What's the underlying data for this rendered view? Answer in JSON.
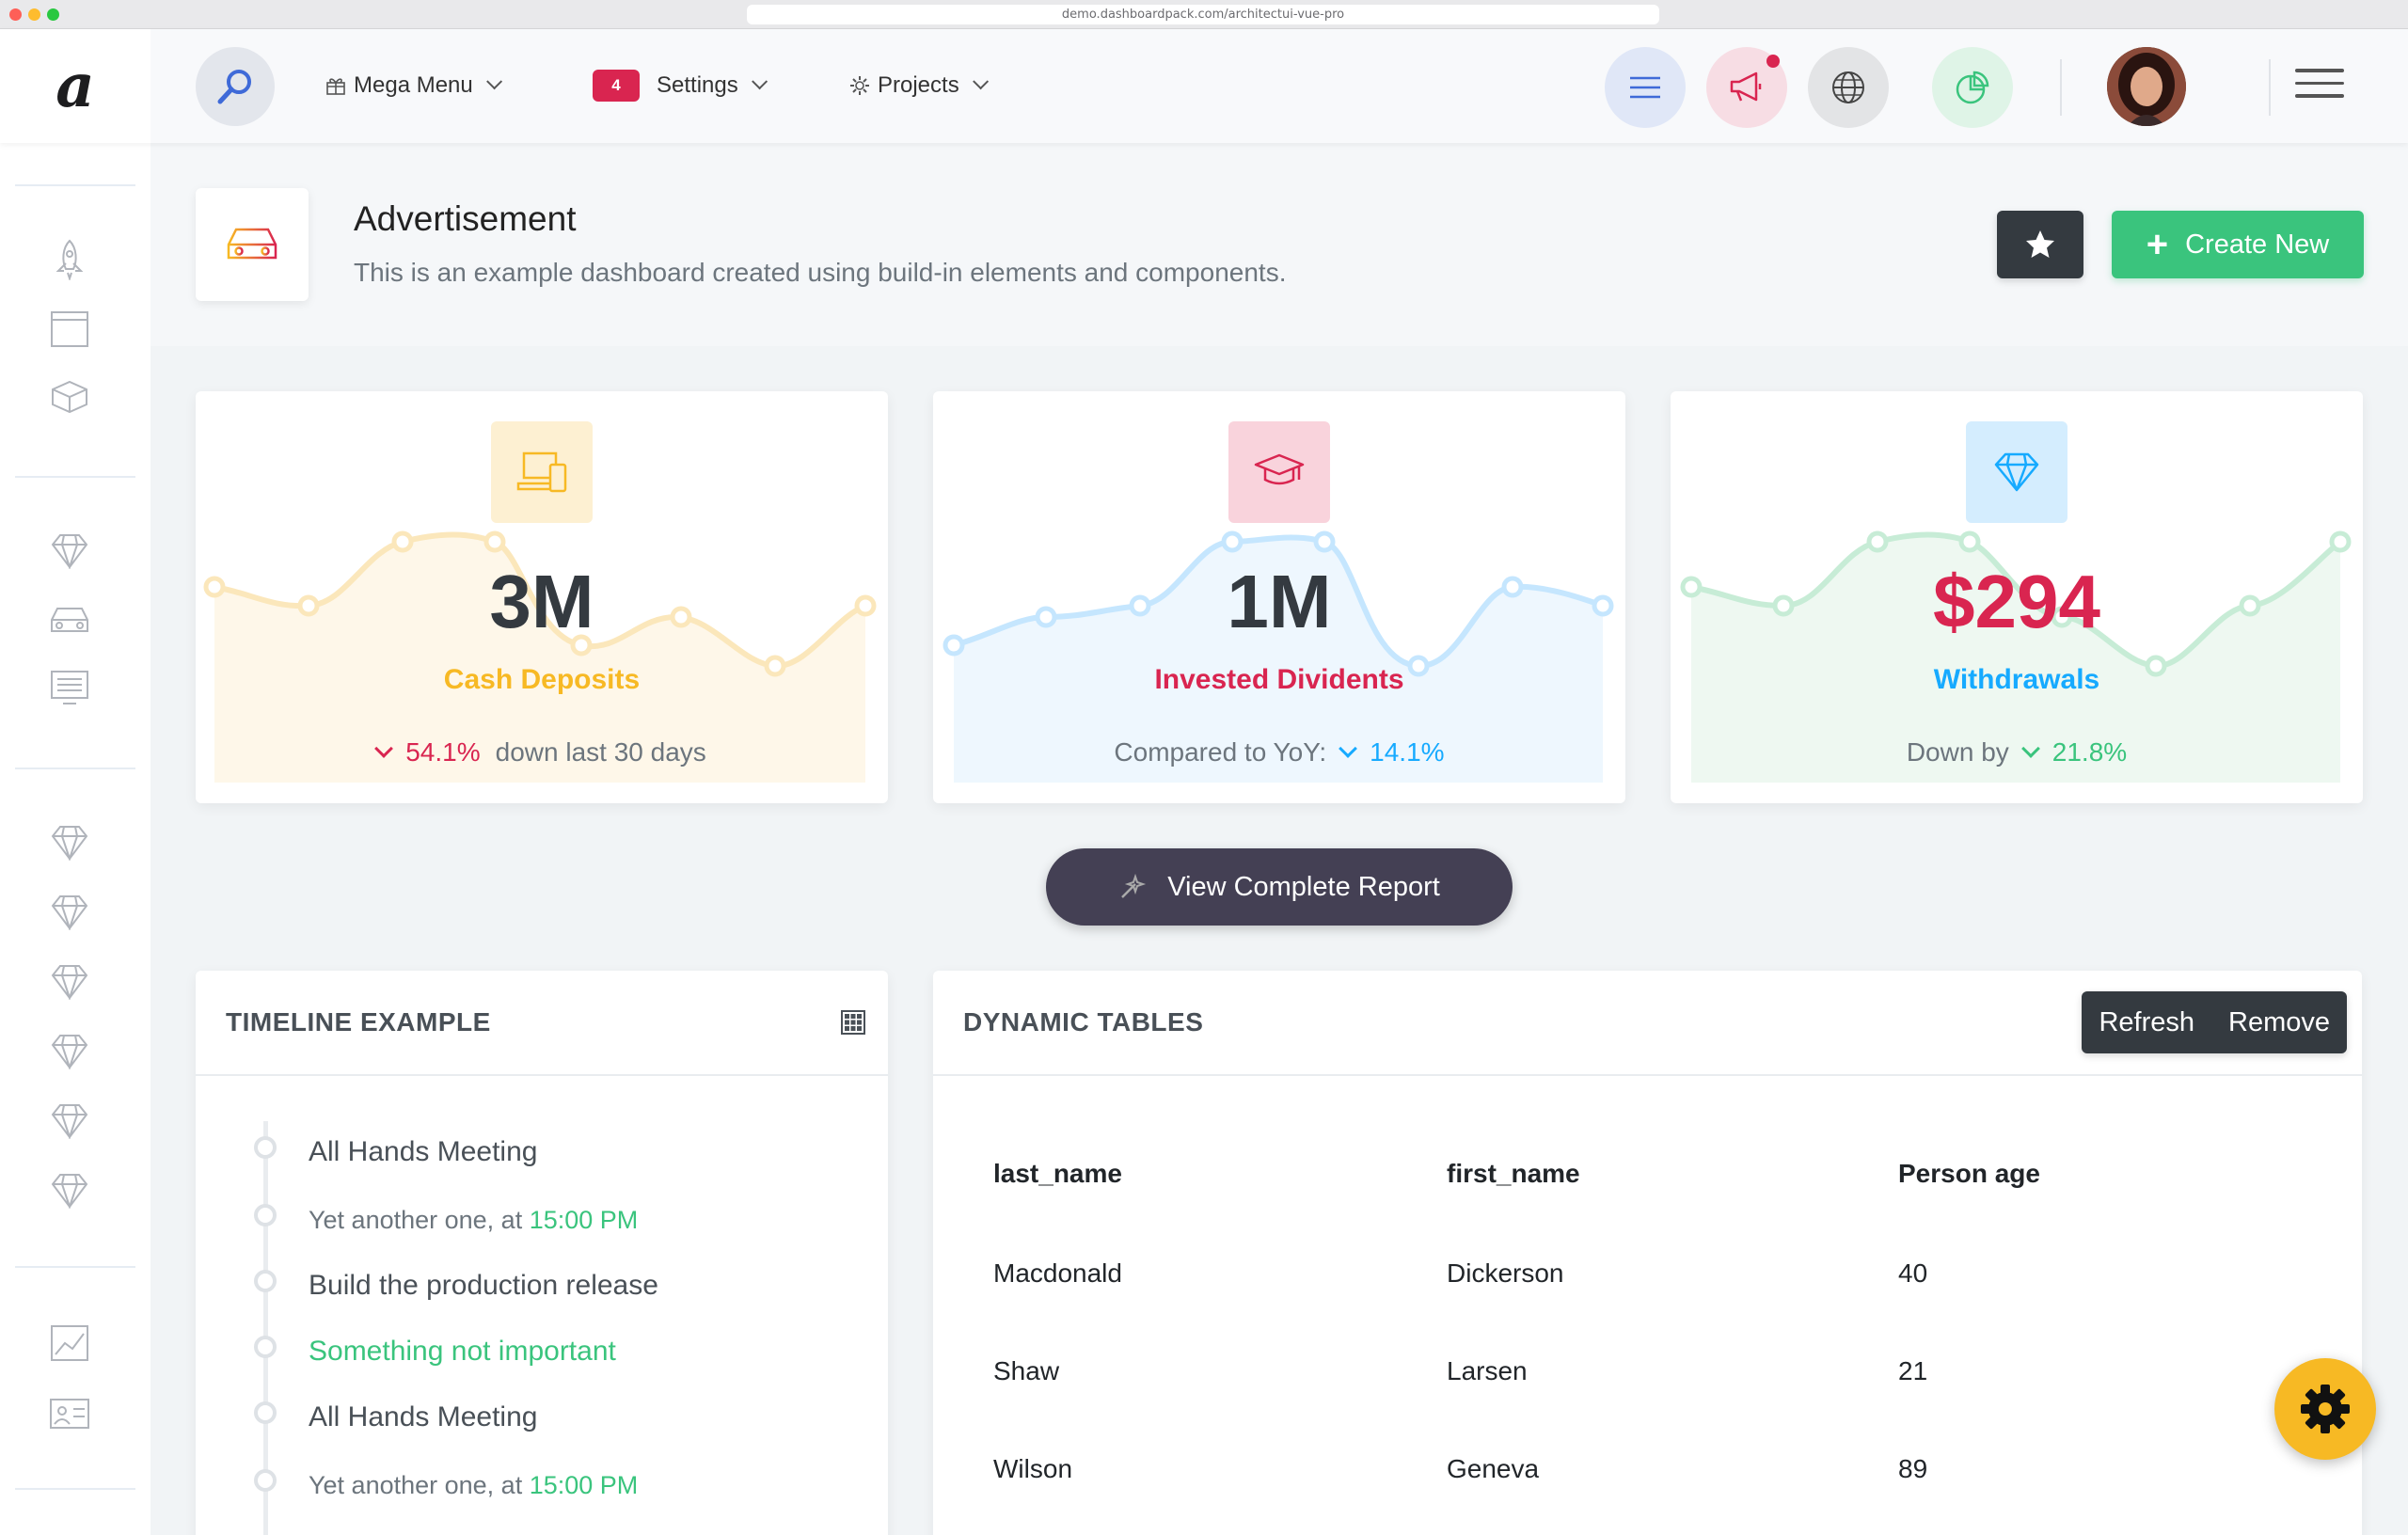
{
  "browser": {
    "url": "demo.dashboardpack.com/architectui-vue-pro"
  },
  "header": {
    "logo": "a",
    "nav": [
      {
        "label": "Mega Menu",
        "icon": "gift-icon"
      },
      {
        "label": "Settings",
        "badge": "4"
      },
      {
        "label": "Projects",
        "icon": "cog-icon"
      }
    ]
  },
  "page_title": {
    "heading": "Advertisement",
    "subheading": "This is an example dashboard created using build-in elements and components.",
    "create_label": "Create New"
  },
  "stats": [
    {
      "value": "3M",
      "label": "Cash Deposits",
      "change": "54.1%",
      "suffix": "down last 30 days",
      "color": "#f7b924"
    },
    {
      "value": "1M",
      "label": "Invested Dividents",
      "prefix": "Compared to YoY:",
      "change": "14.1%",
      "color": "#d92550"
    },
    {
      "value": "$294",
      "label": "Withdrawals",
      "prefix": "Down by",
      "change": "21.8%",
      "color": "#16aaff"
    }
  ],
  "view_report_label": "View Complete Report",
  "timeline": {
    "title": "TIMELINE EXAMPLE",
    "items": [
      {
        "text": "All Hands Meeting"
      },
      {
        "text": "Yet another one, at ",
        "time": "15:00 PM"
      },
      {
        "text": "Build the production release"
      },
      {
        "text": "Something not important"
      },
      {
        "text": "All Hands Meeting"
      },
      {
        "text": "Yet another one, at ",
        "time": "15:00 PM"
      }
    ]
  },
  "tables": {
    "title": "DYNAMIC TABLES",
    "refresh_label": "Refresh",
    "remove_label": "Remove",
    "columns": [
      "last_name",
      "first_name",
      "Person age"
    ],
    "rows": [
      [
        "Macdonald",
        "Dickerson",
        "40"
      ],
      [
        "Shaw",
        "Larsen",
        "21"
      ],
      [
        "Wilson",
        "Geneva",
        "89"
      ]
    ]
  }
}
